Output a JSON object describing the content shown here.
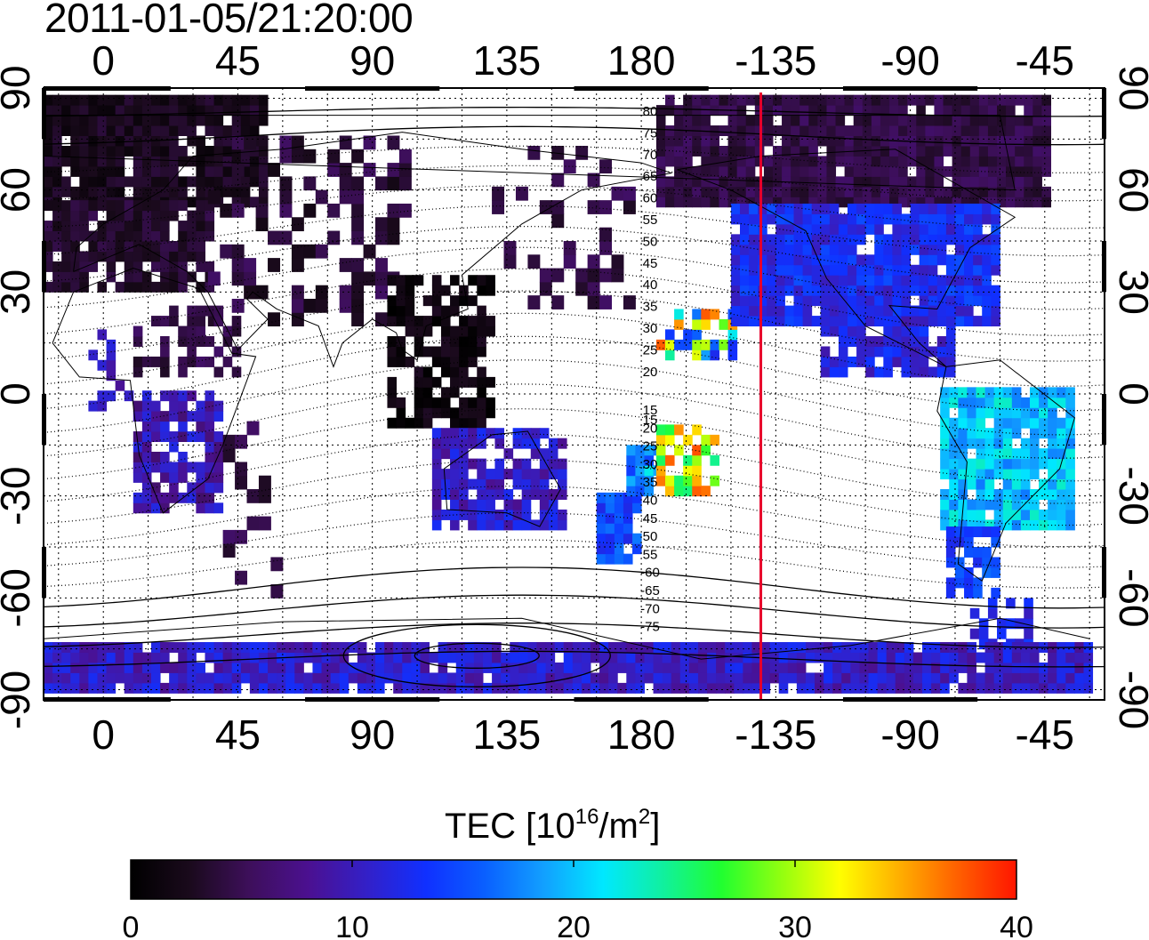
{
  "timestamp": "2011-01-05/21:20:00",
  "map": {
    "longitude_ticks": [
      "0",
      "45",
      "90",
      "135",
      "180",
      "-135",
      "-90",
      "-45"
    ],
    "latitude_ticks": [
      "90",
      "60",
      "30",
      "0",
      "-30",
      "-60",
      "-90"
    ],
    "grid": true,
    "grid_style": "dotted",
    "longitude_range": [
      -20,
      335
    ],
    "latitude_range": [
      -90,
      90
    ],
    "terminator_longitude": -140,
    "terminator_color": "#e8002a",
    "contour_labels_north": [
      "80",
      "75",
      "70",
      "65",
      "60",
      "55",
      "50",
      "45",
      "40",
      "35",
      "30",
      "25",
      "20",
      "15"
    ],
    "contour_labels_south": [
      "15",
      "20",
      "25",
      "30",
      "35",
      "40",
      "45",
      "50",
      "55",
      "-60",
      "-65",
      "-70",
      "-75"
    ]
  },
  "colorbar": {
    "title_main": "TEC  [10",
    "title_exp1": "16",
    "title_mid": "/m",
    "title_exp2": "2",
    "title_end": "]",
    "ticks": [
      "0",
      "10",
      "20",
      "30",
      "40"
    ],
    "range": [
      0,
      40
    ],
    "colors": [
      "#000000",
      "#1a0a1c",
      "#3d0f5a",
      "#4b1090",
      "#3320c8",
      "#1030ff",
      "#0a60ff",
      "#12a0ff",
      "#00e8ff",
      "#10f0a0",
      "#20ff30",
      "#90ff10",
      "#ffff00",
      "#ffb000",
      "#ff6000",
      "#ff1500"
    ]
  }
}
